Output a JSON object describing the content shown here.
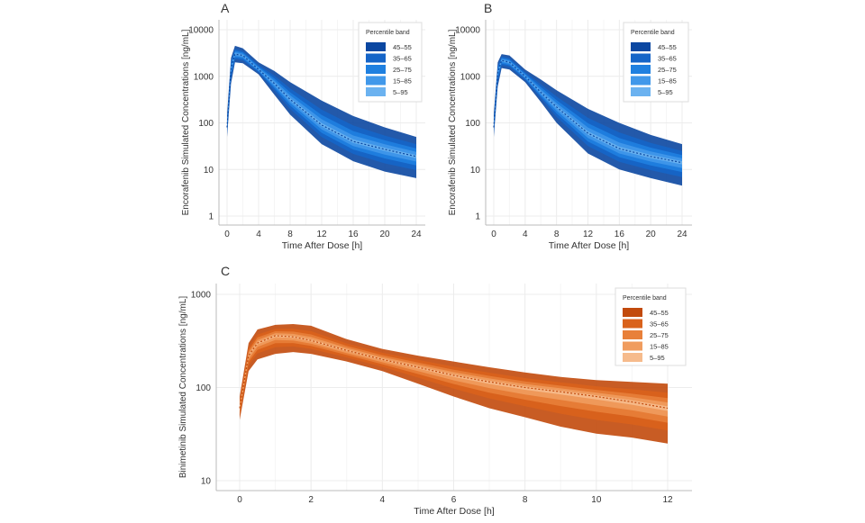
{
  "chart_data": [
    {
      "panel": "A",
      "type": "area",
      "xlabel": "Time After Dose [h]",
      "ylabel": "Encorafenib Simulated Concentrations [ng/mL]",
      "xlim": [
        0,
        24
      ],
      "ylim": [
        1,
        10000
      ],
      "yscale": "log",
      "xticks": [
        "0",
        "4",
        "8",
        "12",
        "16",
        "20",
        "24"
      ],
      "yticks": [
        "1",
        "10",
        "100",
        "1000",
        "10000"
      ],
      "grid": true,
      "legend": {
        "title": "Percentile band",
        "position": "top-right",
        "entries": [
          "45–55",
          "35–65",
          "25–75",
          "15–85",
          "5–95"
        ]
      },
      "colors": [
        "#0b47a1",
        "#1565c8",
        "#1f80e0",
        "#4198ea",
        "#6bb2f0"
      ],
      "x": [
        0,
        0.5,
        1,
        2,
        4,
        6,
        8,
        12,
        16,
        20,
        24
      ],
      "p5": [
        50,
        700,
        2000,
        1900,
        1100,
        400,
        150,
        35,
        15,
        9,
        6.5
      ],
      "p50": [
        80,
        1500,
        3000,
        2800,
        1400,
        700,
        320,
        90,
        40,
        27,
        19
      ],
      "p95": [
        150,
        2500,
        4500,
        4000,
        2000,
        1300,
        750,
        300,
        140,
        80,
        50
      ]
    },
    {
      "panel": "B",
      "type": "area",
      "xlabel": "Time After Dose [h]",
      "ylabel": "Encorafenib Simulated Concentrations [ng/mL]",
      "xlim": [
        0,
        24
      ],
      "ylim": [
        1,
        10000
      ],
      "yscale": "log",
      "xticks": [
        "0",
        "4",
        "8",
        "12",
        "16",
        "20",
        "24"
      ],
      "yticks": [
        "1",
        "10",
        "100",
        "1000",
        "10000"
      ],
      "grid": true,
      "legend": {
        "title": "Percentile band",
        "position": "top-right",
        "entries": [
          "45–55",
          "35–65",
          "25–75",
          "15–85",
          "5–95"
        ]
      },
      "colors": [
        "#0b47a1",
        "#1565c8",
        "#1f80e0",
        "#4198ea",
        "#6bb2f0"
      ],
      "x": [
        0,
        0.5,
        1,
        2,
        4,
        6,
        8,
        12,
        16,
        20,
        24
      ],
      "p5": [
        50,
        600,
        1500,
        1400,
        750,
        280,
        100,
        22,
        10,
        6.5,
        4.5
      ],
      "p50": [
        80,
        1200,
        2200,
        2000,
        1000,
        450,
        220,
        60,
        28,
        19,
        14
      ],
      "p95": [
        150,
        2000,
        3000,
        2800,
        1400,
        850,
        500,
        200,
        100,
        55,
        35
      ]
    },
    {
      "panel": "C",
      "type": "area",
      "xlabel": "Time After Dose [h]",
      "ylabel": "Binimetinib Simulated Concentrations [ng/mL]",
      "xlim": [
        0,
        12
      ],
      "ylim": [
        10,
        1000
      ],
      "yscale": "log",
      "xticks": [
        "0",
        "2",
        "4",
        "6",
        "8",
        "10",
        "12"
      ],
      "yticks": [
        "10",
        "100",
        "1000"
      ],
      "grid": true,
      "legend": {
        "title": "Percentile band",
        "position": "top-right",
        "entries": [
          "45–55",
          "35–65",
          "25–75",
          "15–85",
          "5–95"
        ]
      },
      "colors": [
        "#c24a0c",
        "#d9621c",
        "#e8803a",
        "#f09c5e",
        "#f6bb8c"
      ],
      "x": [
        0,
        0.25,
        0.5,
        1,
        1.5,
        2,
        3,
        4,
        5,
        6,
        7,
        8,
        9,
        10,
        11,
        12
      ],
      "p5": [
        45,
        150,
        200,
        230,
        240,
        230,
        190,
        150,
        110,
        80,
        60,
        48,
        38,
        32,
        29,
        25
      ],
      "p50": [
        60,
        220,
        300,
        360,
        350,
        320,
        250,
        200,
        165,
        135,
        115,
        100,
        90,
        80,
        70,
        60
      ],
      "p95": [
        80,
        300,
        420,
        470,
        480,
        460,
        330,
        260,
        220,
        190,
        165,
        145,
        130,
        120,
        115,
        110
      ]
    }
  ]
}
